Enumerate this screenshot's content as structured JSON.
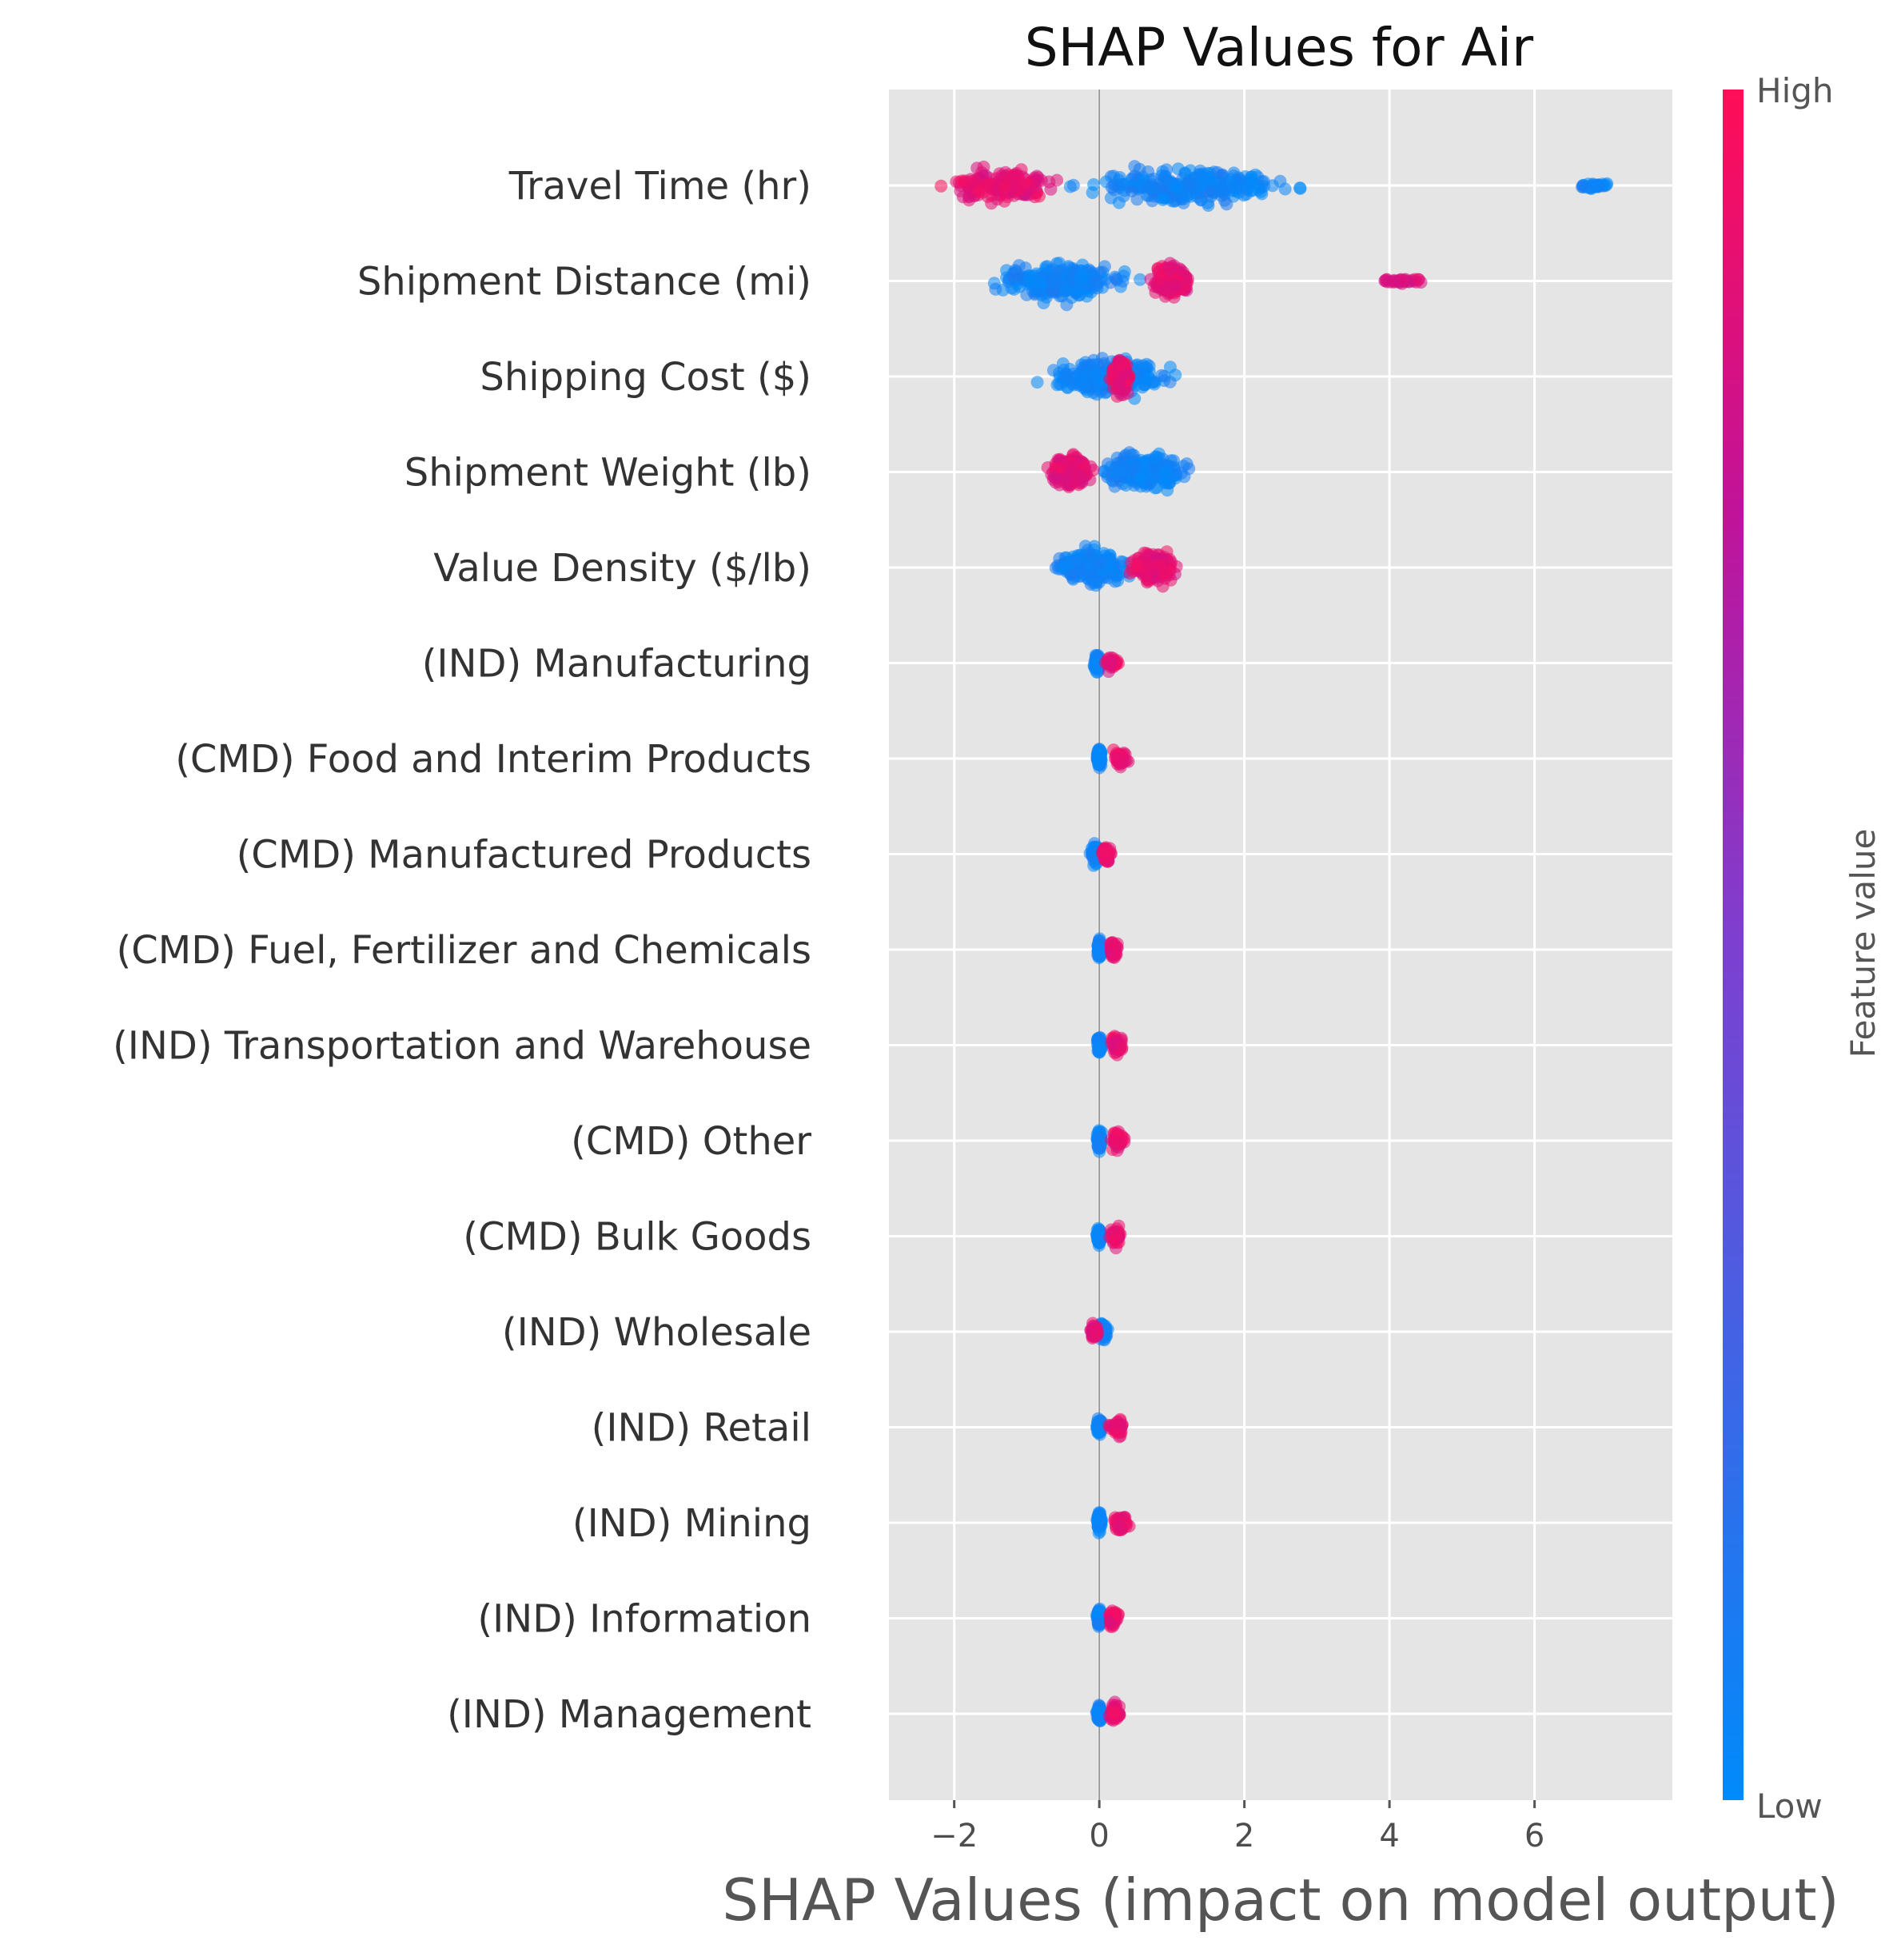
{
  "chart_data": {
    "type": "scatter",
    "subtype": "shap-beeswarm",
    "title": "SHAP Values for Air",
    "xlabel": "SHAP Values (impact on model output)",
    "ylabel": "",
    "xlim": [
      -2.9,
      7.9
    ],
    "xticks": [
      -2,
      0,
      2,
      4,
      6
    ],
    "xtick_labels": [
      "−2",
      "0",
      "2",
      "4",
      "6"
    ],
    "grid": true,
    "colorbar": {
      "title": "Feature value",
      "high_label": "High",
      "low_label": "Low",
      "high_color": "#ff0d57",
      "low_color": "#008bfb"
    },
    "features": [
      {
        "name": "Travel Time (hr)",
        "low_range": [
          -1.0,
          3.4
        ],
        "high_range": [
          -2.5,
          -0.2
        ],
        "outliers_low": [
          6.4,
          7.3
        ]
      },
      {
        "name": "Shipment Distance (mi)",
        "low_range": [
          -1.8,
          0.8
        ],
        "high_range": [
          0.6,
          1.4
        ],
        "outliers_high": [
          3.7,
          4.7
        ]
      },
      {
        "name": "Shipping Cost ($)",
        "low_range": [
          -1.0,
          1.3
        ],
        "high_range": [
          0.1,
          0.5
        ]
      },
      {
        "name": "Shipment Weight (lb)",
        "low_range": [
          -0.2,
          1.5
        ],
        "high_range": [
          -0.8,
          0.0
        ]
      },
      {
        "name": "Value Density ($/lb)",
        "low_range": [
          -0.8,
          0.6
        ],
        "high_range": [
          0.3,
          1.2
        ]
      },
      {
        "name": "(IND) Manufacturing",
        "low_range": [
          -0.1,
          0.05
        ],
        "high_range": [
          0.05,
          0.3
        ]
      },
      {
        "name": "(CMD) Food and Interim Products",
        "low_range": [
          -0.05,
          0.05
        ],
        "high_range": [
          0.1,
          0.45
        ]
      },
      {
        "name": "(CMD) Manufactured Products",
        "low_range": [
          -0.15,
          0.05
        ],
        "high_range": [
          0.0,
          0.2
        ]
      },
      {
        "name": "(CMD) Fuel, Fertilizer and Chemicals",
        "low_range": [
          -0.05,
          0.05
        ],
        "high_range": [
          0.1,
          0.3
        ]
      },
      {
        "name": "(IND) Transportation and Warehouse",
        "low_range": [
          -0.05,
          0.05
        ],
        "high_range": [
          0.1,
          0.4
        ]
      },
      {
        "name": "(CMD) Other",
        "low_range": [
          -0.05,
          0.05
        ],
        "high_range": [
          0.1,
          0.4
        ]
      },
      {
        "name": "(CMD) Bulk Goods",
        "low_range": [
          -0.05,
          0.05
        ],
        "high_range": [
          0.1,
          0.35
        ]
      },
      {
        "name": "(IND) Wholesale",
        "low_range": [
          -0.05,
          0.15
        ],
        "high_range": [
          -0.15,
          0.0
        ]
      },
      {
        "name": "(IND) Retail",
        "low_range": [
          -0.05,
          0.05
        ],
        "high_range": [
          0.1,
          0.4
        ]
      },
      {
        "name": "(IND) Mining",
        "low_range": [
          -0.05,
          0.05
        ],
        "high_range": [
          0.1,
          0.45
        ]
      },
      {
        "name": "(IND) Information",
        "low_range": [
          -0.05,
          0.05
        ],
        "high_range": [
          0.1,
          0.3
        ]
      },
      {
        "name": "(IND) Management",
        "low_range": [
          -0.05,
          0.05
        ],
        "high_range": [
          0.1,
          0.35
        ]
      }
    ]
  }
}
